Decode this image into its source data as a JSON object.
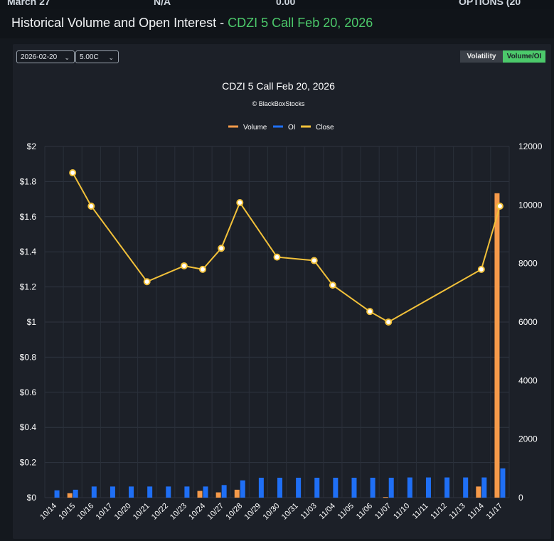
{
  "background_text": {
    "left": "March 27",
    "mid1": "N/A",
    "mid2": "0.00",
    "right": "OPTIONS (20"
  },
  "header": {
    "title_prefix": "Historical Volume and Open Interest -",
    "title_contract": "CDZI 5 Call Feb 20, 2026"
  },
  "controls": {
    "expiry_select": "2026-02-20",
    "strike_select": "5.00C",
    "toggle_volatility": "Volatility",
    "toggle_volume_oi": "Volume/OI"
  },
  "colors": {
    "volume": "#f59a4a",
    "oi": "#1f6ff5",
    "close": "#f2c13a",
    "accent": "#4cc96b"
  },
  "chart_data": {
    "type": "bar+line",
    "title": "CDZI 5 Call Feb 20, 2026",
    "subtitle": "© BlackBoxStocks",
    "legend": [
      "Volume",
      "OI",
      "Close"
    ],
    "legend_position": "top-center",
    "categories": [
      "10/14",
      "10/15",
      "10/16",
      "10/17",
      "10/20",
      "10/21",
      "10/22",
      "10/23",
      "10/24",
      "10/27",
      "10/28",
      "10/29",
      "10/30",
      "10/31",
      "11/03",
      "11/04",
      "11/05",
      "11/06",
      "11/07",
      "11/10",
      "11/11",
      "11/12",
      "11/13",
      "11/14",
      "11/17"
    ],
    "series": [
      {
        "name": "Volume",
        "axis": "right",
        "values": [
          0,
          150,
          0,
          0,
          0,
          0,
          0,
          0,
          230,
          180,
          270,
          0,
          0,
          0,
          0,
          0,
          0,
          0,
          20,
          0,
          0,
          0,
          0,
          380,
          10400
        ]
      },
      {
        "name": "OI",
        "axis": "right",
        "values": [
          250,
          270,
          380,
          380,
          380,
          380,
          380,
          380,
          380,
          430,
          590,
          680,
          680,
          680,
          680,
          680,
          680,
          680,
          680,
          690,
          690,
          690,
          690,
          690,
          1000
        ]
      },
      {
        "name": "Close",
        "axis": "left",
        "values": [
          null,
          1.85,
          1.66,
          null,
          null,
          1.23,
          null,
          1.32,
          1.3,
          1.42,
          1.68,
          null,
          1.37,
          null,
          1.35,
          1.21,
          null,
          1.06,
          1.0,
          null,
          null,
          null,
          null,
          1.3,
          1.66
        ]
      }
    ],
    "y_left": {
      "min": 0,
      "max": 2,
      "ticks": [
        "$0",
        "$0.2",
        "$0.4",
        "$0.6",
        "$0.8",
        "$1",
        "$1.2",
        "$1.4",
        "$1.6",
        "$1.8",
        "$2"
      ]
    },
    "y_right": {
      "min": 0,
      "max": 12000,
      "ticks": [
        "0",
        "2000",
        "4000",
        "6000",
        "8000",
        "10000",
        "12000"
      ]
    },
    "grid": true
  }
}
